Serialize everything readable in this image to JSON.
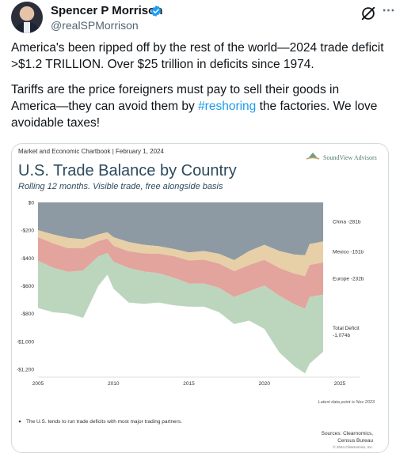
{
  "post": {
    "author_name": "Spencer P Morrison",
    "author_handle": "@realSPMorrison",
    "paragraph1": "America's been ripped off by the rest of the world—2024 trade deficit >$1.2 TRILLION.  Over $25 trillion in deficits since 1974.",
    "paragraph2_before": "Tariffs are the price foreigners must pay to sell their goods in America—they can avoid them by ",
    "hashtag": "#reshoring",
    "paragraph2_after": " the factories.  We love avoidable taxes!"
  },
  "icons": [
    "verified-badge-icon",
    "grok-icon",
    "more-options-icon",
    "soundview-logo-icon"
  ],
  "colors": {
    "link": "#1d9bf0",
    "verified": "#1d9bf0",
    "china": "#8e9aa3",
    "mexico": "#e7cfa7",
    "europe": "#e2a49c",
    "total": "#bcd6bd"
  },
  "chart_meta": {
    "source_line": "Market and Economic Chartbook | February 1, 2024",
    "brand": "SoundView Advisors",
    "footnote_latest": "Latest data point is Nov 2023",
    "bullet": "The U.S. tends to run trade deficits with most major trading partners.",
    "sources_line1": "Sources: Clearnomics,",
    "sources_line2": "Census Bureau",
    "copyright": "© 2024 Clearnomics, Inc."
  },
  "chart_data": {
    "type": "area",
    "title": "U.S. Trade Balance by Country",
    "subtitle": "Rolling 12 months. Visible trade, free alongside basis",
    "x_ticks": [
      "2005",
      "2010",
      "2015",
      "2020",
      "2025"
    ],
    "y_ticks": [
      "$0",
      "-$200",
      "-$400",
      "-$600",
      "-$800",
      "-$1,000",
      "-$1,200"
    ],
    "xlim": [
      2005,
      2025
    ],
    "ylim": [
      -1200,
      0
    ],
    "grid": false,
    "x": [
      2005,
      2006,
      2007,
      2008,
      2009,
      2009.6,
      2010,
      2011,
      2012,
      2013,
      2014,
      2015,
      2016,
      2017,
      2018,
      2019,
      2020,
      2021,
      2022,
      2022.7,
      2023,
      2023.9
    ],
    "series": [
      {
        "name": "China",
        "label": "China -281b",
        "values": [
          -200,
          -230,
          -255,
          -265,
          -230,
          -215,
          -250,
          -285,
          -305,
          -315,
          -335,
          -360,
          -350,
          -370,
          -415,
          -350,
          -305,
          -350,
          -375,
          -380,
          -300,
          -281
        ]
      },
      {
        "name": "Mexico",
        "label": "Mexico -151b",
        "values": [
          -50,
          -65,
          -75,
          -65,
          -48,
          -45,
          -62,
          -66,
          -62,
          -55,
          -52,
          -58,
          -62,
          -70,
          -80,
          -100,
          -108,
          -122,
          -138,
          -150,
          -150,
          -151
        ]
      },
      {
        "name": "Europe",
        "label": "Europe -232b",
        "values": [
          -170,
          -175,
          -170,
          -160,
          -110,
          -105,
          -115,
          -120,
          -130,
          -140,
          -155,
          -165,
          -172,
          -175,
          -185,
          -190,
          -185,
          -200,
          -220,
          -235,
          -230,
          -232
        ]
      },
      {
        "name": "Total Deficit",
        "label": "Total Deficit\n-1,074b",
        "values": [
          -760,
          -790,
          -800,
          -830,
          -600,
          -520,
          -620,
          -720,
          -730,
          -720,
          -740,
          -750,
          -750,
          -790,
          -875,
          -850,
          -910,
          -1080,
          -1180,
          -1230,
          -1160,
          -1074
        ]
      }
    ]
  }
}
